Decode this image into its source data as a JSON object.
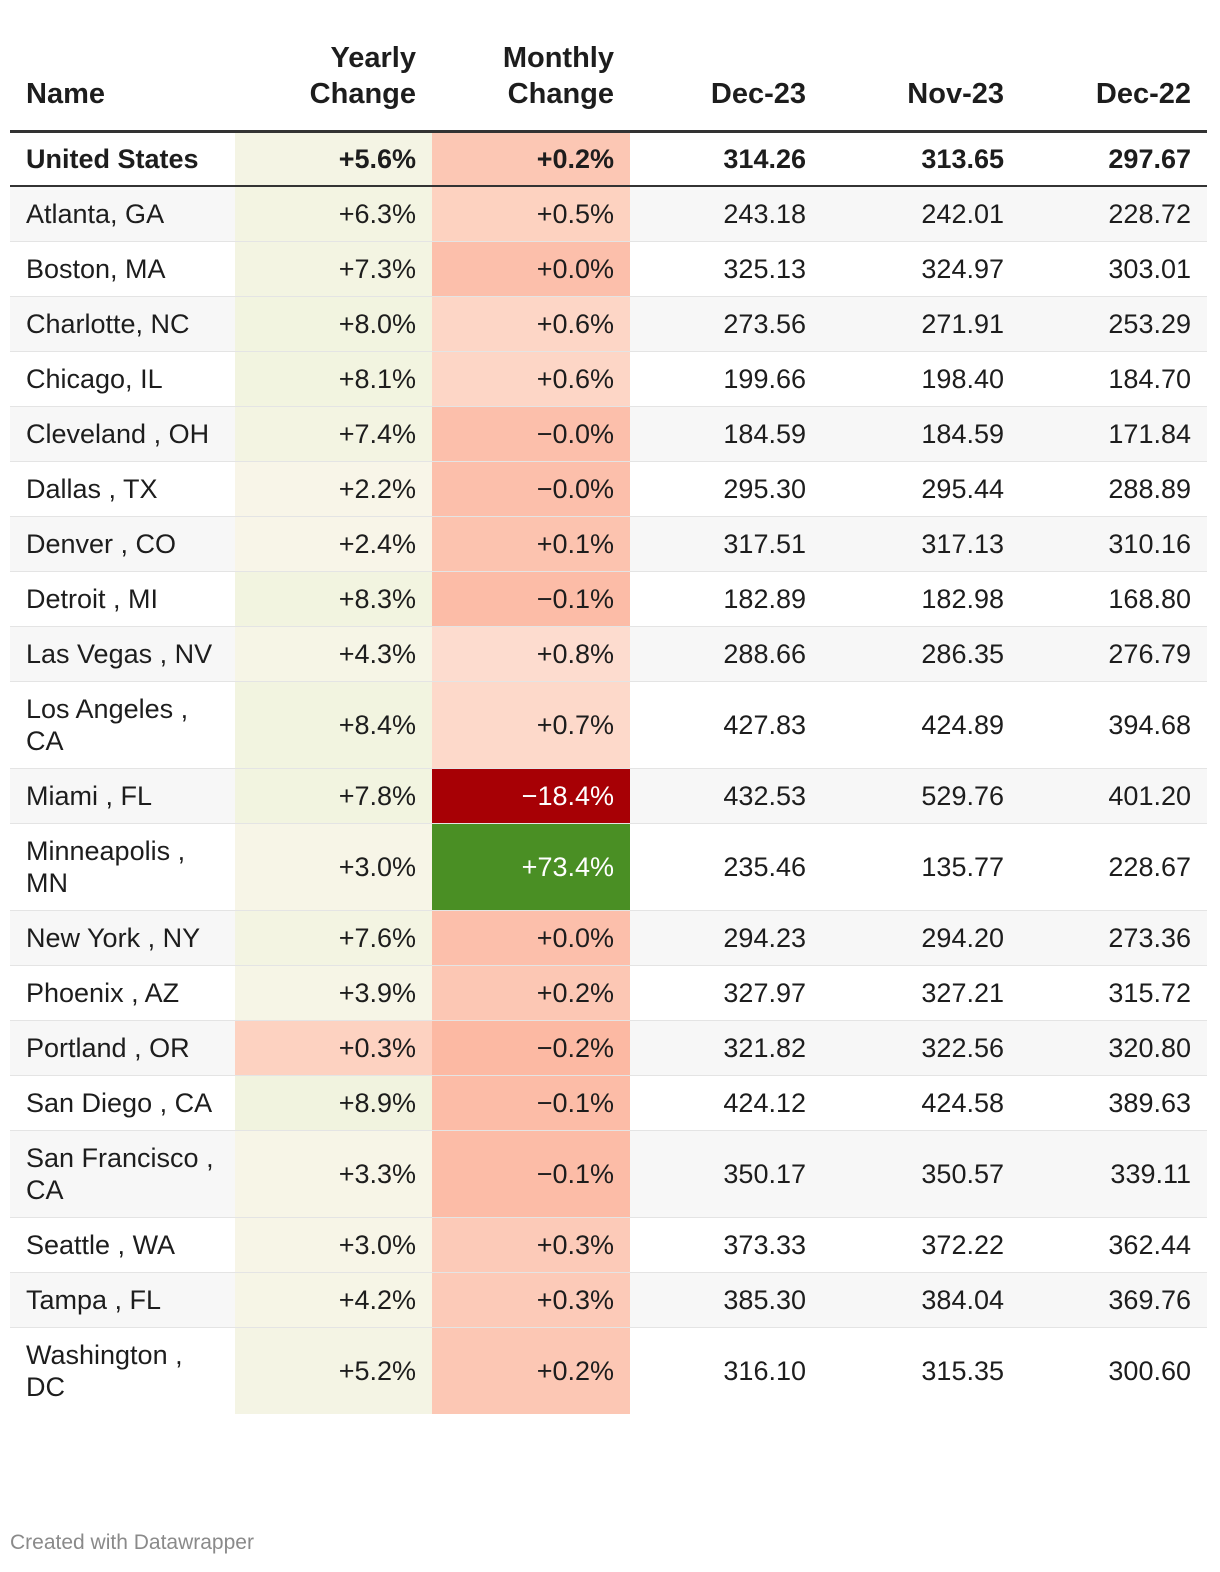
{
  "chart_data": {
    "type": "table",
    "columns": [
      "Name",
      "Yearly Change",
      "Monthly Change",
      "Dec-23",
      "Nov-23",
      "Dec-22"
    ],
    "highlight_row": {
      "name": "United States",
      "yearly": "+5.6%",
      "monthly": "+0.2%",
      "dec23": "314.26",
      "nov23": "313.65",
      "dec22": "297.67",
      "yearly_color": "#f4f4e4",
      "monthly_color": "#fcc7b4"
    },
    "rows": [
      {
        "name": "Atlanta, GA",
        "yearly": "+6.3%",
        "monthly": "+0.5%",
        "dec23": "243.18",
        "nov23": "242.01",
        "dec22": "228.72",
        "yearly_color": "#f3f4e2",
        "monthly_color": "#fdd2c0"
      },
      {
        "name": "Boston, MA",
        "yearly": "+7.3%",
        "monthly": "+0.0%",
        "dec23": "325.13",
        "nov23": "324.97",
        "dec22": "303.01",
        "yearly_color": "#f3f4e2",
        "monthly_color": "#fcbfab"
      },
      {
        "name": "Charlotte, NC",
        "yearly": "+8.0%",
        "monthly": "+0.6%",
        "dec23": "273.56",
        "nov23": "271.91",
        "dec22": "253.29",
        "yearly_color": "#f2f4e0",
        "monthly_color": "#fdd6c6"
      },
      {
        "name": "Chicago, IL",
        "yearly": "+8.1%",
        "monthly": "+0.6%",
        "dec23": "199.66",
        "nov23": "198.40",
        "dec22": "184.70",
        "yearly_color": "#f2f4e0",
        "monthly_color": "#fdd6c6"
      },
      {
        "name": "Cleveland , OH",
        "yearly": "+7.4%",
        "monthly": "−0.0%",
        "dec23": "184.59",
        "nov23": "184.59",
        "dec22": "171.84",
        "yearly_color": "#f3f4e2",
        "monthly_color": "#fcbfab"
      },
      {
        "name": "Dallas , TX",
        "yearly": "+2.2%",
        "monthly": "−0.0%",
        "dec23": "295.30",
        "nov23": "295.44",
        "dec22": "288.89",
        "yearly_color": "#f8f5e8",
        "monthly_color": "#fcbfab"
      },
      {
        "name": "Denver , CO",
        "yearly": "+2.4%",
        "monthly": "+0.1%",
        "dec23": "317.51",
        "nov23": "317.13",
        "dec22": "310.16",
        "yearly_color": "#f8f5e8",
        "monthly_color": "#fcc3af"
      },
      {
        "name": "Detroit , MI",
        "yearly": "+8.3%",
        "monthly": "−0.1%",
        "dec23": "182.89",
        "nov23": "182.98",
        "dec22": "168.80",
        "yearly_color": "#f2f4e0",
        "monthly_color": "#fcbca7"
      },
      {
        "name": "Las Vegas , NV",
        "yearly": "+4.3%",
        "monthly": "+0.8%",
        "dec23": "288.66",
        "nov23": "286.35",
        "dec22": "276.79",
        "yearly_color": "#f6f5e6",
        "monthly_color": "#fddccf"
      },
      {
        "name": "Los Angeles , CA",
        "yearly": "+8.4%",
        "monthly": "+0.7%",
        "dec23": "427.83",
        "nov23": "424.89",
        "dec22": "394.68",
        "yearly_color": "#f2f4e0",
        "monthly_color": "#fdd9ca"
      },
      {
        "name": "Miami , FL",
        "yearly": "+7.8%",
        "monthly": "−18.4%",
        "dec23": "432.53",
        "nov23": "529.76",
        "dec22": "401.20",
        "yearly_color": "#f2f4e0",
        "monthly_color": "#a70005"
      },
      {
        "name": "Minneapolis , MN",
        "yearly": "+3.0%",
        "monthly": "+73.4%",
        "dec23": "235.46",
        "nov23": "135.77",
        "dec22": "228.67",
        "yearly_color": "#f7f5e7",
        "monthly_color": "#4a8f24"
      },
      {
        "name": "New York , NY",
        "yearly": "+7.6%",
        "monthly": "+0.0%",
        "dec23": "294.23",
        "nov23": "294.20",
        "dec22": "273.36",
        "yearly_color": "#f3f4e2",
        "monthly_color": "#fcbfab"
      },
      {
        "name": "Phoenix , AZ",
        "yearly": "+3.9%",
        "monthly": "+0.2%",
        "dec23": "327.97",
        "nov23": "327.21",
        "dec22": "315.72",
        "yearly_color": "#f6f5e6",
        "monthly_color": "#fcc7b4"
      },
      {
        "name": "Portland , OR",
        "yearly": "+0.3%",
        "monthly": "−0.2%",
        "dec23": "321.82",
        "nov23": "322.56",
        "dec22": "320.80",
        "yearly_color": "#fdd2c1",
        "monthly_color": "#fcb9a3"
      },
      {
        "name": "San Diego , CA",
        "yearly": "+8.9%",
        "monthly": "−0.1%",
        "dec23": "424.12",
        "nov23": "424.58",
        "dec22": "389.63",
        "yearly_color": "#f1f3df",
        "monthly_color": "#fcbca7"
      },
      {
        "name": "San Francisco , CA",
        "yearly": "+3.3%",
        "monthly": "−0.1%",
        "dec23": "350.17",
        "nov23": "350.57",
        "dec22": "339.11",
        "yearly_color": "#f7f5e7",
        "monthly_color": "#fcbca7"
      },
      {
        "name": "Seattle , WA",
        "yearly": "+3.0%",
        "monthly": "+0.3%",
        "dec23": "373.33",
        "nov23": "372.22",
        "dec22": "362.44",
        "yearly_color": "#f7f5e7",
        "monthly_color": "#fccab8"
      },
      {
        "name": "Tampa , FL",
        "yearly": "+4.2%",
        "monthly": "+0.3%",
        "dec23": "385.30",
        "nov23": "384.04",
        "dec22": "369.76",
        "yearly_color": "#f6f5e6",
        "monthly_color": "#fccab8"
      },
      {
        "name": "Washington , DC",
        "yearly": "+5.2%",
        "monthly": "+0.2%",
        "dec23": "316.10",
        "nov23": "315.35",
        "dec22": "300.60",
        "yearly_color": "#f4f4e4",
        "monthly_color": "#fcc7b4"
      }
    ]
  },
  "footer": "Created with Datawrapper"
}
